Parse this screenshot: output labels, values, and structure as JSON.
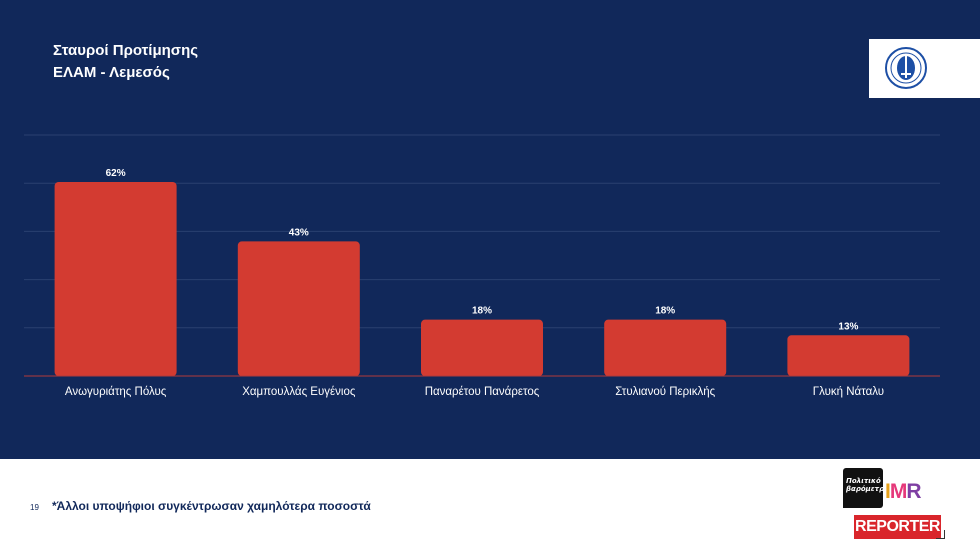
{
  "slide": {
    "title_line1": "Σταυροί Προτίμησης",
    "title_line2": "ΕΛΑΜ - Λεμεσός",
    "page_number": "19",
    "footnote": "*Άλλοι υποψήφιοι συγκέντρωσαν χαμηλότερα ποσοστά",
    "colors": {
      "background": "#11285a",
      "bar": "#d33b31",
      "text": "#ffffff"
    }
  },
  "logo": {
    "icon": "elam-party-emblem"
  },
  "brands": {
    "politiko": "Πολιτικό βαρόμετρο",
    "imr_i": "I",
    "imr_m": "M",
    "imr_r": "R",
    "reporter": "REPORTER"
  },
  "chart_data": {
    "type": "bar",
    "title": "",
    "xlabel": "",
    "ylabel": "",
    "categories": [
      "Ανωγυριάτης Πόλυς",
      "Χαμπουλλάς Ευγένιος",
      "Παναρέτου Πανάρετος",
      "Στυλιανού Περικλής",
      "Γλυκή Νάταλυ"
    ],
    "values": [
      62,
      43,
      18,
      18,
      13
    ],
    "data_labels": [
      "62%",
      "43%",
      "18%",
      "18%",
      "13%"
    ],
    "ylim": [
      0,
      77
    ],
    "grid": true,
    "legend": "none"
  }
}
